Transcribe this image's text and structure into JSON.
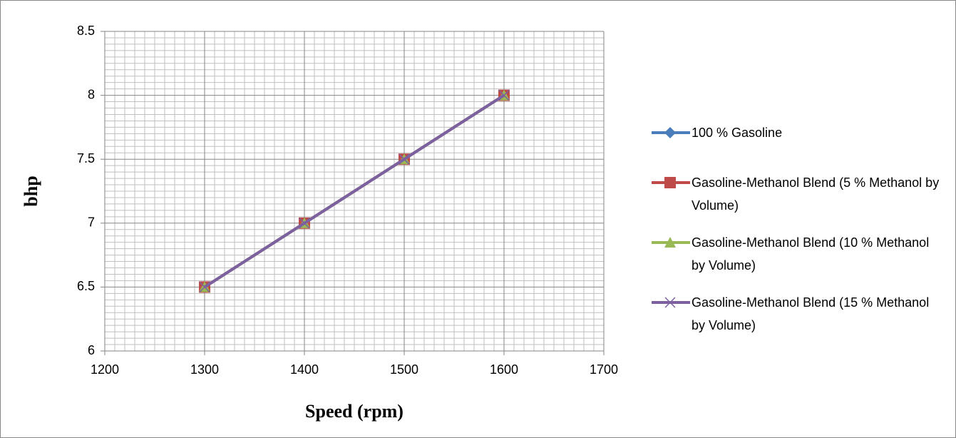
{
  "chart_data": {
    "type": "line",
    "x_label": "Speed (rpm)",
    "y_label": "bhp",
    "x": [
      1300,
      1400,
      1500,
      1600
    ],
    "series": [
      {
        "name": "100 % Gasoline",
        "color": "#4a7ebb",
        "marker": "diamond",
        "values": [
          6.5,
          7,
          7.5,
          8
        ]
      },
      {
        "name": "Gasoline-Methanol Blend (5 % Methanol by Volume)",
        "color": "#be4b48",
        "marker": "square",
        "values": [
          6.5,
          7,
          7.5,
          8
        ]
      },
      {
        "name": "Gasoline-Methanol Blend (10 % Methanol by Volume)",
        "color": "#98b954",
        "marker": "triangle",
        "values": [
          6.5,
          7,
          7.5,
          8
        ]
      },
      {
        "name": "Gasoline-Methanol Blend (15 % Methanol by Volume)",
        "color": "#7d60a0",
        "marker": "x",
        "values": [
          6.5,
          7,
          7.5,
          8
        ]
      }
    ],
    "xlim": [
      1200,
      1700
    ],
    "xticks": [
      1200,
      1300,
      1400,
      1500,
      1600,
      1700
    ],
    "ylim": [
      6,
      8.5
    ],
    "yticks": [
      6,
      6.5,
      7,
      7.5,
      8,
      8.5
    ],
    "grid": true,
    "minor_grid": true,
    "legend": "right"
  }
}
